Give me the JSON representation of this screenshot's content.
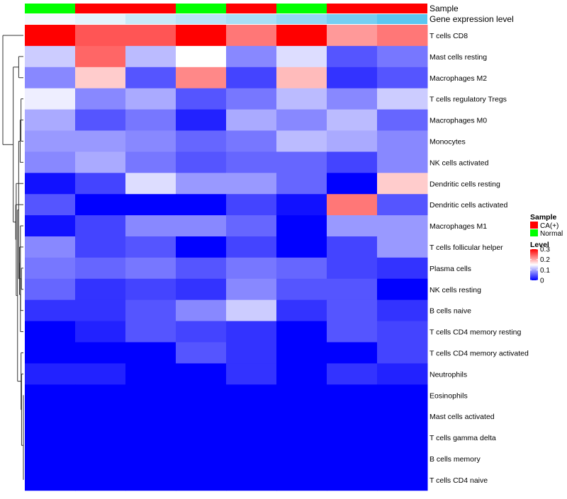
{
  "chart_data": {
    "type": "heatmap",
    "title": "",
    "annotation_labels": {
      "sample": "Sample",
      "expression": "Gene expression level"
    },
    "sample_groups": [
      "Normal",
      "CA(+)",
      "CA(+)",
      "Normal",
      "CA(+)",
      "Normal",
      "CA(+)",
      "CA(+)"
    ],
    "expression_levels": [
      0.02,
      0.05,
      0.1,
      0.13,
      0.16,
      0.2,
      0.25,
      0.3
    ],
    "rows": [
      "T cells CD8",
      "Mast cells resting",
      "Macrophages M2",
      "T cells regulatory  Tregs",
      "Macrophages M0",
      "Monocytes",
      "NK cells activated",
      "Dendritic cells resting",
      "Dendritic cells activated",
      "Macrophages M1",
      "T cells follicular helper",
      "Plasma cells",
      "NK cells resting",
      "B cells naive",
      "T cells CD4 memory resting",
      "T cells CD4 memory activated",
      "Neutrophils",
      "Eosinophils",
      "Mast cells activated",
      "T cells gamma delta",
      "B cells memory",
      "T cells CD4 naive"
    ],
    "values": [
      [
        0.3,
        0.25,
        0.25,
        0.3,
        0.23,
        0.3,
        0.21,
        0.23
      ],
      [
        0.12,
        0.24,
        0.11,
        0.15,
        0.08,
        0.13,
        0.05,
        0.07
      ],
      [
        0.08,
        0.18,
        0.05,
        0.22,
        0.04,
        0.19,
        0.03,
        0.05
      ],
      [
        0.14,
        0.08,
        0.1,
        0.05,
        0.07,
        0.11,
        0.08,
        0.12
      ],
      [
        0.1,
        0.05,
        0.07,
        0.02,
        0.1,
        0.08,
        0.11,
        0.06
      ],
      [
        0.09,
        0.09,
        0.08,
        0.06,
        0.07,
        0.11,
        0.1,
        0.08
      ],
      [
        0.08,
        0.1,
        0.07,
        0.05,
        0.06,
        0.06,
        0.04,
        0.08
      ],
      [
        0.01,
        0.04,
        0.13,
        0.09,
        0.09,
        0.06,
        0.0,
        0.18
      ],
      [
        0.05,
        0.0,
        0.0,
        0.0,
        0.04,
        0.01,
        0.23,
        0.05
      ],
      [
        0.01,
        0.04,
        0.08,
        0.08,
        0.06,
        0.0,
        0.09,
        0.09
      ],
      [
        0.08,
        0.04,
        0.05,
        0.0,
        0.04,
        0.0,
        0.04,
        0.09
      ],
      [
        0.07,
        0.06,
        0.07,
        0.05,
        0.07,
        0.06,
        0.04,
        0.03
      ],
      [
        0.06,
        0.03,
        0.04,
        0.03,
        0.08,
        0.05,
        0.05,
        0.0
      ],
      [
        0.03,
        0.03,
        0.05,
        0.08,
        0.12,
        0.03,
        0.05,
        0.03
      ],
      [
        0.0,
        0.02,
        0.05,
        0.04,
        0.03,
        0.0,
        0.05,
        0.04
      ],
      [
        0.0,
        0.0,
        0.0,
        0.05,
        0.03,
        0.0,
        0.0,
        0.04
      ],
      [
        0.02,
        0.02,
        0.0,
        0.0,
        0.03,
        0.0,
        0.03,
        0.02
      ],
      [
        0.0,
        0.0,
        0.0,
        0.0,
        0.0,
        0.0,
        0.0,
        0.0
      ],
      [
        0.0,
        0.0,
        0.0,
        0.0,
        0.0,
        0.0,
        0.0,
        0.0
      ],
      [
        0.0,
        0.0,
        0.0,
        0.0,
        0.0,
        0.0,
        0.0,
        0.0
      ],
      [
        0.0,
        0.0,
        0.0,
        0.0,
        0.0,
        0.0,
        0.0,
        0.0
      ],
      [
        0.0,
        0.0,
        0.0,
        0.0,
        0.0,
        0.0,
        0.0,
        0.0
      ]
    ],
    "colorscale": {
      "low": "#0000ff",
      "mid": "#ffffff",
      "high": "#ff0000",
      "min": 0,
      "max": 0.3
    },
    "legend": {
      "sample_title": "Sample",
      "sample_items": [
        {
          "label": "CA(+)",
          "color": "#ff0000"
        },
        {
          "label": "Normal",
          "color": "#00ff00"
        }
      ],
      "level_title": "Level",
      "level_ticks": [
        {
          "value": 0.3,
          "label": "0.3"
        },
        {
          "value": 0.2,
          "label": "0.2"
        },
        {
          "value": 0.1,
          "label": "0.1"
        },
        {
          "value": 0,
          "label": "0"
        }
      ],
      "placement": "right"
    },
    "row_dendrogram": true
  }
}
